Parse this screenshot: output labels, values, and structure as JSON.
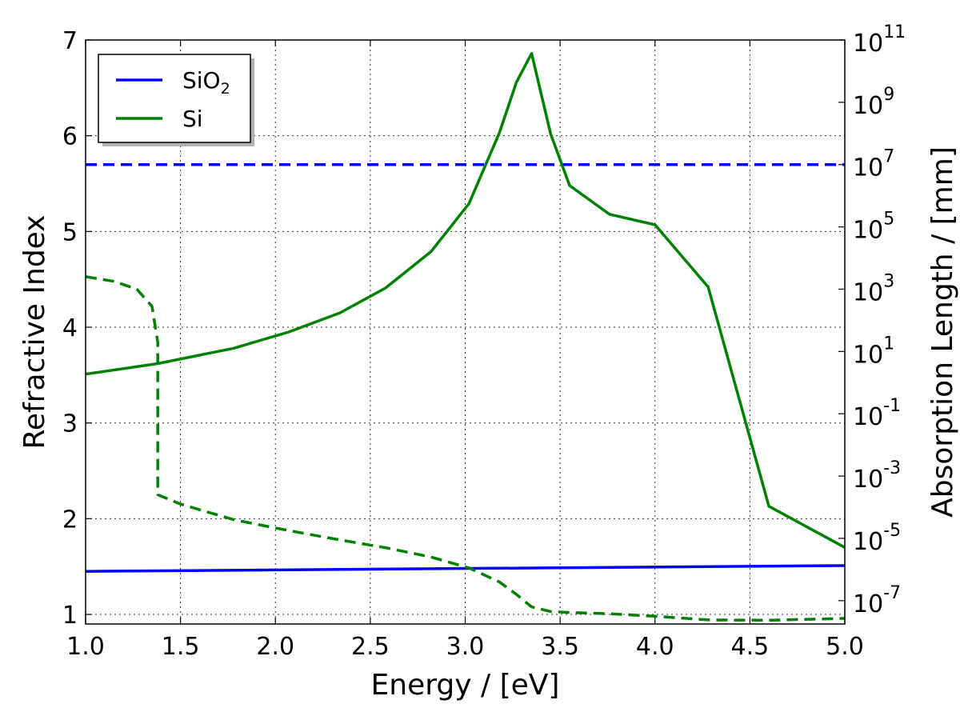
{
  "chart_data": {
    "type": "line",
    "xlabel": "Energy / [eV]",
    "ylabel": "Refractive Index",
    "y2label": "Absorption Length / [mm]",
    "xlim": [
      1.0,
      5.0
    ],
    "ylim": [
      0.9,
      7.0
    ],
    "y2lim_log10": [
      -7.75,
      11.0
    ],
    "x_ticks": [
      1.0,
      1.5,
      2.0,
      2.5,
      3.0,
      3.5,
      4.0,
      4.5,
      5.0
    ],
    "x_tick_labels": [
      "1.0",
      "1.5",
      "2.0",
      "2.5",
      "3.0",
      "3.5",
      "4.0",
      "4.5",
      "5.0"
    ],
    "y_ticks": [
      1,
      2,
      3,
      4,
      5,
      6,
      7
    ],
    "y_tick_labels": [
      "1",
      "2",
      "3",
      "4",
      "5",
      "6",
      "7"
    ],
    "y2_ticks": [
      {
        "base": "10",
        "exp": "11",
        "log10": 11
      },
      {
        "base": "10",
        "exp": "9",
        "log10": 9
      },
      {
        "base": "10",
        "exp": "7",
        "log10": 7
      },
      {
        "base": "10",
        "exp": "5",
        "log10": 5
      },
      {
        "base": "10",
        "exp": "3",
        "log10": 3
      },
      {
        "base": "10",
        "exp": "1",
        "log10": 1
      },
      {
        "base": "10",
        "exp": "-1",
        "log10": -1
      },
      {
        "base": "10",
        "exp": "-3",
        "log10": -3
      },
      {
        "base": "10",
        "exp": "-5",
        "log10": -5
      },
      {
        "base": "10",
        "exp": "-7",
        "log10": -7
      }
    ],
    "grid": true,
    "legend": {
      "placement": "top-left",
      "entries": [
        {
          "label": "SiO",
          "subscript": "2",
          "color": "#0000ff"
        },
        {
          "label": "Si",
          "subscript": "",
          "color": "#008000"
        }
      ]
    },
    "series": [
      {
        "name": "SiO2 refractive index",
        "axis": "left",
        "style": "solid",
        "color": "#0000ff",
        "x": [
          1.0,
          5.0
        ],
        "y": [
          1.45,
          1.51
        ]
      },
      {
        "name": "SiO2 absorption length",
        "axis": "right",
        "style": "dashed",
        "color": "#0000ff",
        "x": [
          1.0,
          5.0
        ],
        "y_log10": [
          7.0,
          7.0
        ]
      },
      {
        "name": "Si refractive index",
        "axis": "left",
        "style": "solid",
        "color": "#008000",
        "x": [
          1.0,
          1.38,
          1.78,
          2.07,
          2.34,
          2.58,
          2.82,
          3.02,
          3.18,
          3.27,
          3.35,
          3.45,
          3.55,
          3.76,
          4.0,
          4.28,
          4.6,
          5.0
        ],
        "y": [
          3.51,
          3.62,
          3.78,
          3.95,
          4.15,
          4.41,
          4.79,
          5.29,
          6.03,
          6.56,
          6.86,
          6.02,
          5.48,
          5.18,
          5.07,
          4.42,
          2.13,
          1.7
        ]
      },
      {
        "name": "Si absorption length",
        "axis": "right",
        "style": "dashed",
        "color": "#008000",
        "x": [
          1.0,
          1.15,
          1.27,
          1.35,
          1.38,
          1.38,
          1.5,
          1.78,
          2.07,
          2.34,
          2.58,
          2.82,
          3.02,
          3.18,
          3.27,
          3.35,
          3.45,
          3.55,
          3.76,
          4.0,
          4.28,
          4.6,
          5.0
        ],
        "y_log10": [
          3.4,
          3.25,
          3.0,
          2.45,
          1.3,
          -3.6,
          -3.9,
          -4.4,
          -4.75,
          -5.05,
          -5.3,
          -5.6,
          -5.95,
          -6.4,
          -6.8,
          -7.2,
          -7.35,
          -7.38,
          -7.42,
          -7.5,
          -7.62,
          -7.63,
          -7.57
        ]
      }
    ]
  }
}
